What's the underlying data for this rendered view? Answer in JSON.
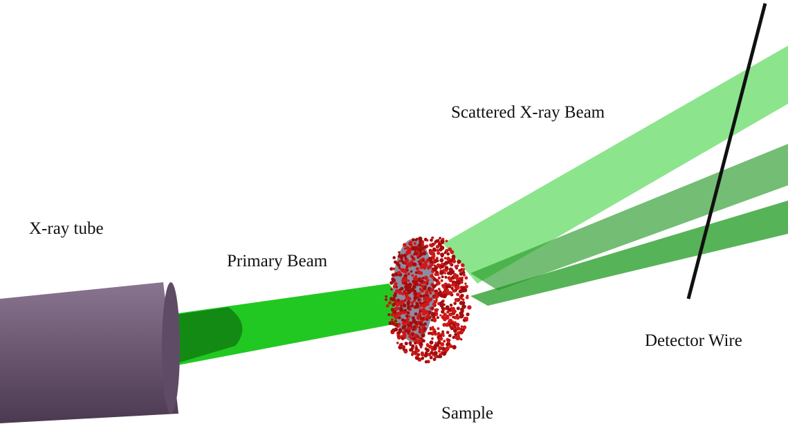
{
  "labels": {
    "tube": "X-ray tube",
    "primary_beam": "Primary Beam",
    "scattered_beam": "Scattered X-ray Beam",
    "detector_wire": "Detector Wire",
    "sample": "Sample"
  }
}
